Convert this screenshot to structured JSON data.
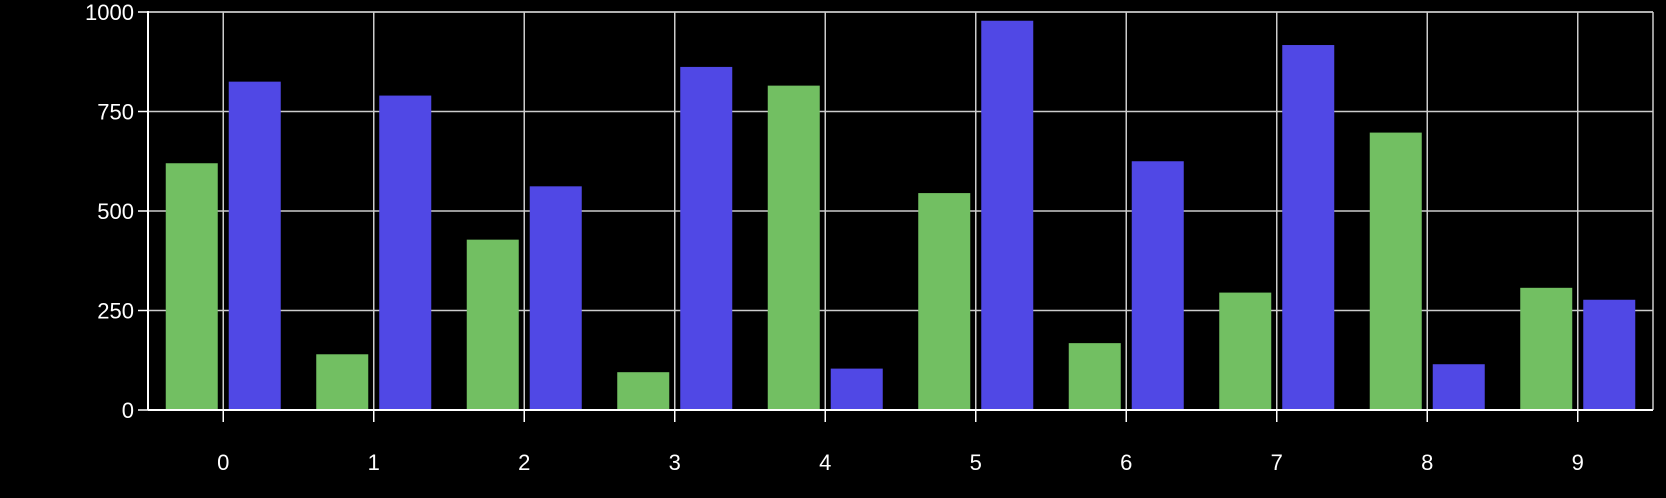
{
  "chart_data": {
    "type": "bar",
    "categories": [
      "0",
      "1",
      "2",
      "3",
      "4",
      "5",
      "6",
      "7",
      "8",
      "9"
    ],
    "series": [
      {
        "values": [
          620,
          140,
          428,
          95,
          815,
          545,
          168,
          295,
          697,
          307
        ],
        "color": "#72bf62"
      },
      {
        "values": [
          825,
          790,
          562,
          862,
          104,
          978,
          625,
          917,
          115,
          277
        ],
        "color": "#5048e5"
      }
    ],
    "y_ticks": [
      "0",
      "250",
      "500",
      "750",
      "1000"
    ],
    "ylim": [
      0,
      1000
    ],
    "grid": true,
    "colors": {
      "background": "#000000",
      "grid": "#cccccc",
      "axis": "#ffffff",
      "text": "#ffffff"
    }
  }
}
